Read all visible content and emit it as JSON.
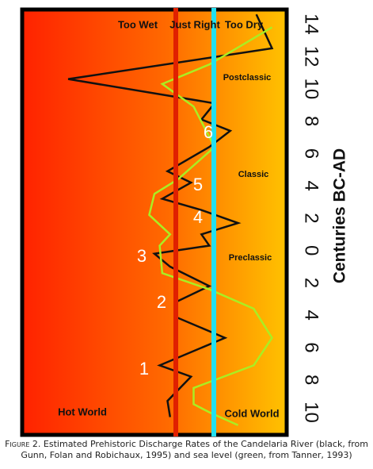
{
  "chart_data": {
    "type": "line",
    "ylabel": "Centuries BC-AD",
    "ylim": [
      -11.4,
      14.9
    ],
    "xlim": [
      0,
      100
    ],
    "yticks": [
      14,
      12,
      10,
      8,
      6,
      4,
      2,
      0,
      {
        "value": -2,
        "label": "2"
      },
      {
        "value": -4,
        "label": "4"
      },
      {
        "value": -6,
        "label": "6"
      },
      {
        "value": -8,
        "label": "8"
      },
      {
        "value": -10,
        "label": "10"
      }
    ],
    "annotations": [
      "Too Wet",
      "Just Right",
      "Too Dry",
      "Postclassic",
      "Classic",
      "Preclassic",
      "Hot World",
      "Cold World",
      "1",
      "2",
      "3",
      "4",
      "5",
      "6"
    ],
    "series": [
      {
        "color": "#111111",
        "x": [
          89,
          95,
          17,
          73,
          68,
          79,
          71,
          55,
          64,
          53,
          68,
          82,
          68,
          71,
          50,
          56,
          71,
          58,
          58,
          77,
          52,
          64,
          55,
          56
        ],
        "values": [
          14.6,
          12.5,
          10.6,
          9.1,
          8.1,
          7.4,
          6.4,
          4.9,
          4.2,
          3.2,
          2.5,
          1.7,
          1.0,
          0.3,
          -0.2,
          -1.0,
          -2.2,
          -3.2,
          -4.1,
          -5.4,
          -7.1,
          -7.8,
          -9.3,
          -10.3
        ]
      },
      {
        "color": "#aaee22",
        "x": [
          95,
          71,
          53,
          65,
          73,
          59,
          50,
          48,
          56,
          52,
          53,
          71,
          88,
          95,
          88,
          65,
          65,
          71,
          82
        ],
        "values": [
          13.8,
          11.5,
          10.3,
          8.9,
          6.4,
          4.4,
          3.5,
          2.2,
          1.0,
          0.3,
          -1.4,
          -2.4,
          -3.6,
          -5.4,
          -7.1,
          -8.5,
          -9.5,
          -10.0,
          -10.8
        ]
      }
    ],
    "caption_label": "Figure 2.",
    "caption": "Estimated Prehistoric Discharge Rates of the Candelaria River (black, from Gunn, Folan and Robichaux, 1995) and sea level (green, from Tanner, 1993)"
  }
}
